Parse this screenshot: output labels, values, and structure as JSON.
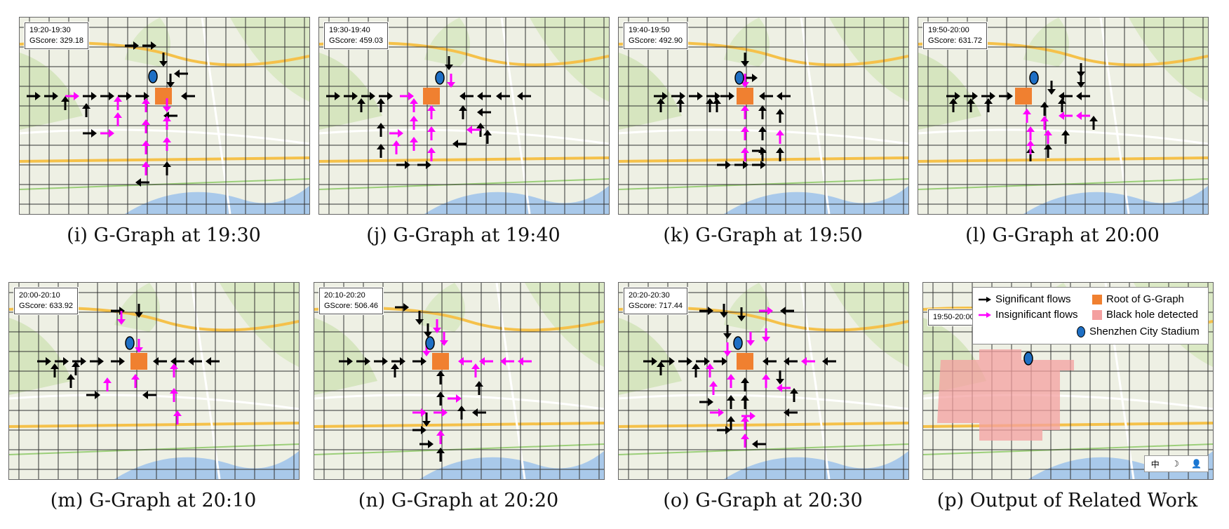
{
  "colors": {
    "significant": "#000000",
    "insignificant": "#ff00ff",
    "root": "#f08030",
    "black_hole": "#f4a0a0",
    "stadium": "#1e6fc4",
    "grid": "#222222"
  },
  "panels": [
    {
      "id": "i",
      "time": "19:20-19:30",
      "gscore": "GScore: 329.18",
      "caption": "(i)  G-Graph at 19:30"
    },
    {
      "id": "j",
      "time": "19:30-19:40",
      "gscore": "GScore: 459.03",
      "caption": "(j)  G-Graph at 19:40"
    },
    {
      "id": "k",
      "time": "19:40-19:50",
      "gscore": "GScore: 492.90",
      "caption": "(k)  G-Graph at 19:50"
    },
    {
      "id": "l",
      "time": "19:50-20:00",
      "gscore": "GScore: 631.72",
      "caption": "(l)  G-Graph at 20:00"
    },
    {
      "id": "m",
      "time": "20:00-20:10",
      "gscore": "GScore: 633.92",
      "caption": "(m)  G-Graph at 20:10"
    },
    {
      "id": "n",
      "time": "20:10-20:20",
      "gscore": "GScore: 506.46",
      "caption": "(n)  G-Graph at 20:20"
    },
    {
      "id": "o",
      "time": "20:20-20:30",
      "gscore": "GScore: 717.44",
      "caption": "(o)  G-Graph at 20:30"
    },
    {
      "id": "p",
      "time": "19:50-20:00",
      "gscore": "",
      "caption": "(p)  Output of Related Work"
    }
  ],
  "legend": {
    "significant": "Significant flows",
    "insignificant": "Insignificant flows",
    "root": "Root of G-Graph",
    "black_hole": "Black hole detected",
    "stadium": "Shenzhen City Stadium"
  },
  "map_controls": {
    "lang": "中",
    "night": "☽",
    "user": "👤"
  }
}
